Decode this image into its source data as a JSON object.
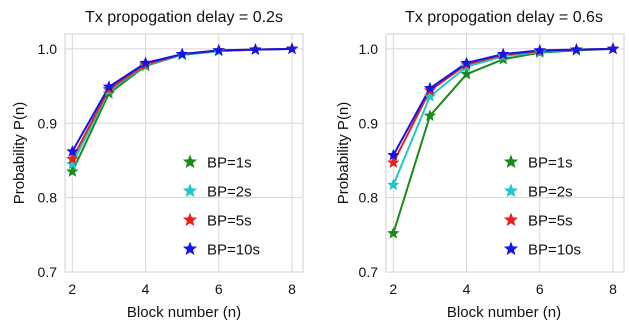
{
  "chart_data": [
    {
      "type": "line",
      "title": "Tx propogation delay = 0.2s",
      "xlabel": "Block number (n)",
      "ylabel": "Probability P(n)",
      "xlim": [
        1.8,
        8.3
      ],
      "ylim": [
        0.7,
        1.02
      ],
      "xticks": [
        2,
        4,
        6,
        8
      ],
      "xtick_labels": [
        "2",
        "4",
        "6",
        "8"
      ],
      "yticks": [
        0.7,
        0.8,
        0.9,
        1.0
      ],
      "ytick_labels": [
        "0.7",
        "0.8",
        "0.9",
        "1.0"
      ],
      "grid": true,
      "legend_position": "lower-right",
      "x": [
        2,
        3,
        4,
        5,
        6,
        7,
        8
      ],
      "series": [
        {
          "name": "BP=1s",
          "color": "#1a8a1a",
          "marker": "star",
          "values": [
            0.835,
            0.94,
            0.977,
            0.992,
            0.997,
            0.999,
            1.0
          ]
        },
        {
          "name": "BP=2s",
          "color": "#1fc7c7",
          "marker": "star",
          "values": [
            0.845,
            0.944,
            0.978,
            0.992,
            0.997,
            0.999,
            1.0
          ]
        },
        {
          "name": "BP=5s",
          "color": "#e8211d",
          "marker": "star",
          "values": [
            0.852,
            0.946,
            0.979,
            0.993,
            0.998,
            0.999,
            1.0
          ]
        },
        {
          "name": "BP=10s",
          "color": "#1515e8",
          "marker": "star",
          "values": [
            0.862,
            0.949,
            0.981,
            0.993,
            0.998,
            0.999,
            1.0
          ]
        }
      ]
    },
    {
      "type": "line",
      "title": "Tx propogation delay = 0.6s",
      "xlabel": "Block number (n)",
      "ylabel": "Probability P(n)",
      "xlim": [
        1.8,
        8.3
      ],
      "ylim": [
        0.7,
        1.02
      ],
      "xticks": [
        2,
        4,
        6,
        8
      ],
      "xtick_labels": [
        "2",
        "4",
        "6",
        "8"
      ],
      "yticks": [
        0.7,
        0.8,
        0.9,
        1.0
      ],
      "ytick_labels": [
        "0.7",
        "0.8",
        "0.9",
        "1.0"
      ],
      "grid": true,
      "legend_position": "lower-right",
      "x": [
        2,
        3,
        4,
        5,
        6,
        7,
        8
      ],
      "series": [
        {
          "name": "BP=1s",
          "color": "#1a8a1a",
          "marker": "star",
          "values": [
            0.752,
            0.91,
            0.966,
            0.986,
            0.995,
            0.998,
            1.0
          ]
        },
        {
          "name": "BP=2s",
          "color": "#1fc7c7",
          "marker": "star",
          "values": [
            0.817,
            0.936,
            0.976,
            0.99,
            0.996,
            0.999,
            1.0
          ]
        },
        {
          "name": "BP=5s",
          "color": "#e8211d",
          "marker": "star",
          "values": [
            0.847,
            0.944,
            0.979,
            0.992,
            0.997,
            0.999,
            1.0
          ]
        },
        {
          "name": "BP=10s",
          "color": "#1515e8",
          "marker": "star",
          "values": [
            0.857,
            0.947,
            0.981,
            0.993,
            0.998,
            0.999,
            1.0
          ]
        }
      ]
    }
  ]
}
